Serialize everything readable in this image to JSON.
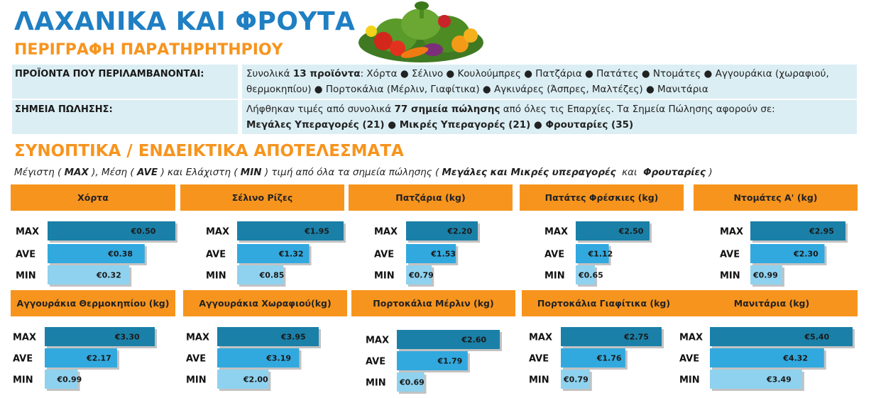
{
  "header": {
    "title": "ΛΑΧΑΝΙΚΑ ΚΑΙ ΦΡΟΥΤΑ",
    "subtitle": "ΠΕΡΙΓΡΑΦΗ ΠΑΡΑΤΗΡΗΤΗΡΙΟΥ"
  },
  "info": {
    "products_label": "ΠΡΟΪΟΝΤΑ ΠΟΥ ΠΕΡΙΛΑΜΒΑΝΟΝΤΑΙ:",
    "products_prefix": "Συνολικά ",
    "products_count": "13 προϊόντα",
    "products_list": ": Χόρτα ● Σέλινο ● Κουλούμπρες ● Πατζάρια ● Πατάτες ● Ντομάτες ● Αγγουράκια (χωραφιού, θερμοκηπίου) ● Πορτοκάλια (Μέρλιν, Γιαφίτικα) ● Αγκινάρες (Άσπρες, Μαλτέζες) ● Μανιτάρια",
    "points_label": "ΣΗΜΕΙΑ ΠΩΛΗΣΗΣ:",
    "points_prefix": "Λήφθηκαν τιμές από συνολικά ",
    "points_count": "77 σημεία πώλησης",
    "points_suffix": " από όλες τις Επαρχίες. Τα Σημεία Πώλησης αφορούν σε:",
    "points_breakdown": "Μεγάλες Υπεραγορές (21) ● Μικρές Υπεραγορές (21) ● Φρουταρίες (35)"
  },
  "summary": {
    "title": "ΣΥΝΟΠΤΙΚΑ / ΕΝΔΕΙΚΤΙΚΑ ΑΠΟΤΕΛΕΣΜΑΤΑ",
    "note_p1": "Μέγιστη ( ",
    "note_max": "MAX",
    "note_p2": " ), Μέση ( ",
    "note_ave": "AVE",
    "note_p3": " ) και Ελάχιστη ( ",
    "note_min": "MIN",
    "note_p4": " ) τιμή από όλα τα σημεία πώλησης ( ",
    "note_stores": "Μεγάλες και Μικρές υπεραγορές",
    "note_and": "  και  ",
    "note_fruit": "Φρουταρίες",
    "note_p5": " )"
  },
  "colors": {
    "title_blue": "#1f7fc3",
    "orange": "#f7941d",
    "info_bg": "#dbeef4",
    "max_bar": "#1a80a8",
    "ave_bar": "#31a9df",
    "min_bar": "#8fd2ef"
  },
  "icons": {
    "vegetables": "vegetables-fruit-basket-image"
  },
  "chart_data": [
    {
      "type": "bar",
      "title": "Χόρτα",
      "categories": [
        "MAX",
        "AVE",
        "MIN"
      ],
      "values": [
        0.5,
        0.38,
        0.32
      ],
      "value_labels": [
        "€0.50",
        "€0.38",
        "€0.32"
      ]
    },
    {
      "type": "bar",
      "title": "Σέλινο Ρίζες",
      "categories": [
        "MAX",
        "AVE",
        "MIN"
      ],
      "values": [
        1.95,
        1.32,
        0.85
      ],
      "value_labels": [
        "€1.95",
        "€1.32",
        "€0.85"
      ]
    },
    {
      "type": "bar",
      "title": "Πατζάρια (kg)",
      "categories": [
        "MAX",
        "AVE",
        "MIN"
      ],
      "values": [
        2.2,
        1.53,
        0.79
      ],
      "value_labels": [
        "€2.20",
        "€1.53",
        "€0.79"
      ]
    },
    {
      "type": "bar",
      "title": "Πατάτες Φρέσκιες (kg)",
      "categories": [
        "MAX",
        "AVE",
        "MIN"
      ],
      "values": [
        2.5,
        1.12,
        0.65
      ],
      "value_labels": [
        "€2.50",
        "€1.12",
        "€0.65"
      ]
    },
    {
      "type": "bar",
      "title": "Ντομάτες Α' (kg)",
      "categories": [
        "MAX",
        "AVE",
        "MIN"
      ],
      "values": [
        2.95,
        2.3,
        0.99
      ],
      "value_labels": [
        "€2.95",
        "€2.30",
        "€0.99"
      ]
    },
    {
      "type": "bar",
      "title": "Αγγουράκια Θερμοκηπίου (kg)",
      "categories": [
        "MAX",
        "AVE",
        "MIN"
      ],
      "values": [
        3.3,
        2.17,
        0.99
      ],
      "value_labels": [
        "€3.30",
        "€2.17",
        "€0.99"
      ]
    },
    {
      "type": "bar",
      "title": "Αγγουράκια Χωραφιού(kg)",
      "categories": [
        "MAX",
        "AVE",
        "MIN"
      ],
      "values": [
        3.95,
        3.19,
        2.0
      ],
      "value_labels": [
        "€3.95",
        "€3.19",
        "€2.00"
      ]
    },
    {
      "type": "bar",
      "title": "Πορτοκάλια Μέρλιν (kg)",
      "categories": [
        "MAX",
        "AVE",
        "MIN"
      ],
      "values": [
        2.6,
        1.79,
        0.69
      ],
      "value_labels": [
        "€2.60",
        "€1.79",
        "€0.69"
      ]
    },
    {
      "type": "bar",
      "title": "Πορτοκάλια Γιαφίτικα (kg)",
      "categories": [
        "MAX",
        "AVE",
        "MIN"
      ],
      "values": [
        2.75,
        1.76,
        0.79
      ],
      "value_labels": [
        "€2.75",
        "€1.76",
        "€0.79"
      ]
    },
    {
      "type": "bar",
      "title": "Μανιτάρια (kg)",
      "categories": [
        "MAX",
        "AVE",
        "MIN"
      ],
      "values": [
        5.4,
        4.32,
        3.49
      ],
      "value_labels": [
        "€5.40",
        "€4.32",
        "€3.49"
      ]
    }
  ]
}
